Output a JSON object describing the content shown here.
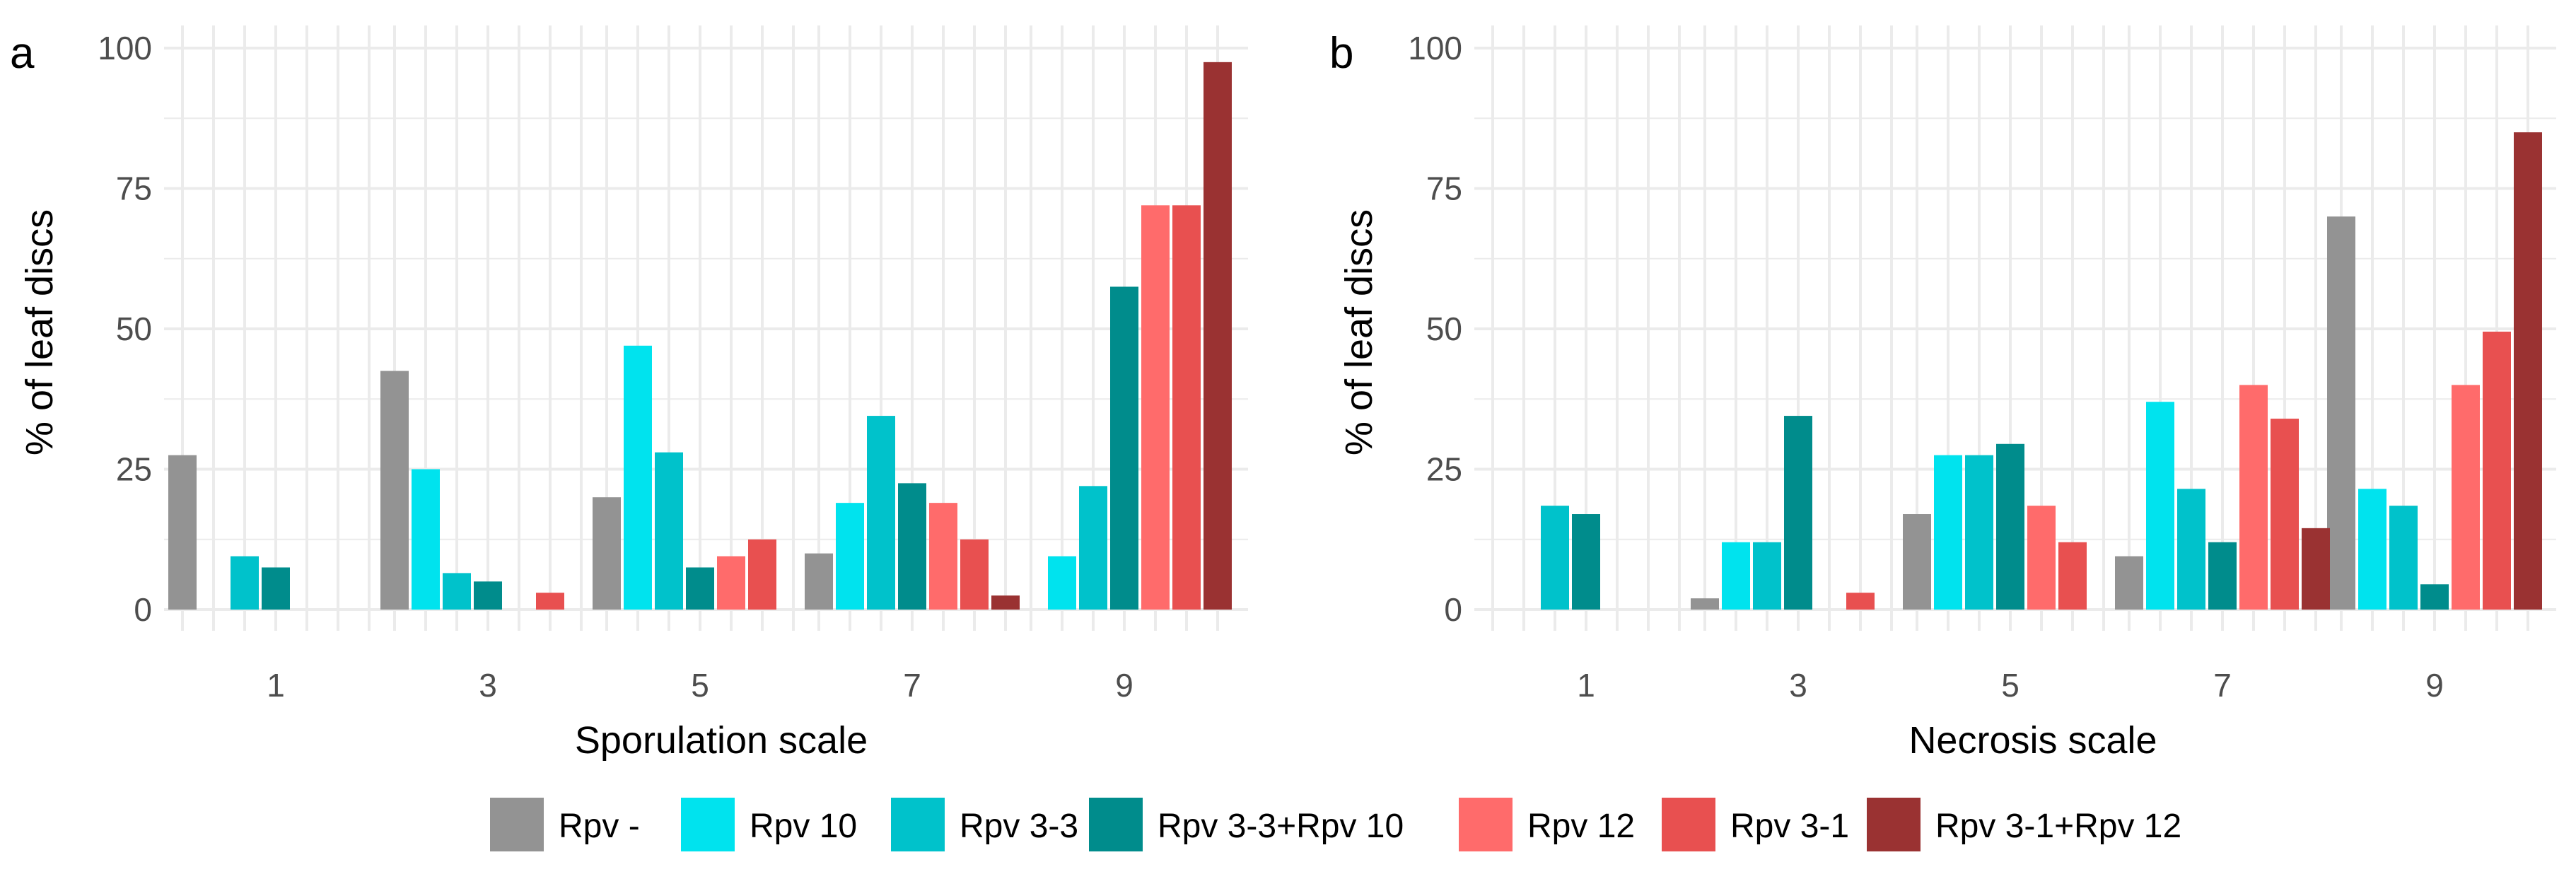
{
  "chart_data": [
    {
      "type": "bar",
      "panel_label": "a",
      "xlabel": "Sporulation scale",
      "ylabel": "% of leaf discs",
      "categories": [
        "1",
        "3",
        "5",
        "7",
        "9"
      ],
      "ylim": [
        0,
        100
      ],
      "yticks": [
        0,
        25,
        50,
        75,
        100
      ],
      "grid": true,
      "series": [
        {
          "name": "Rpv -",
          "values": [
            27.5,
            42.5,
            20,
            10,
            0
          ]
        },
        {
          "name": "Rpv 10",
          "values": [
            0,
            25,
            47,
            19,
            9.5
          ]
        },
        {
          "name": "Rpv 3-3",
          "values": [
            9.5,
            6.5,
            28,
            34.5,
            22
          ]
        },
        {
          "name": "Rpv 3-3+Rpv 10",
          "values": [
            7.5,
            5,
            7.5,
            22.5,
            57.5
          ]
        },
        {
          "name": "Rpv 12",
          "values": [
            0,
            0,
            9.5,
            19,
            72
          ]
        },
        {
          "name": "Rpv 3-1",
          "values": [
            0,
            3,
            12.5,
            12.5,
            72
          ]
        },
        {
          "name": "Rpv 3-1+Rpv 12",
          "values": [
            0,
            0,
            0,
            2.5,
            97.5
          ]
        }
      ]
    },
    {
      "type": "bar",
      "panel_label": "b",
      "xlabel": "Necrosis scale",
      "ylabel": "% of leaf discs",
      "categories": [
        "1",
        "3",
        "5",
        "7",
        "9"
      ],
      "ylim": [
        0,
        100
      ],
      "yticks": [
        0,
        25,
        50,
        75,
        100
      ],
      "grid": true,
      "series": [
        {
          "name": "Rpv -",
          "values": [
            0,
            2,
            17,
            9.5,
            70
          ]
        },
        {
          "name": "Rpv 10",
          "values": [
            0,
            12,
            27.5,
            37,
            21.5
          ]
        },
        {
          "name": "Rpv 3-3",
          "values": [
            18.5,
            12,
            27.5,
            21.5,
            18.5
          ]
        },
        {
          "name": "Rpv 3-3+Rpv 10",
          "values": [
            17,
            34.5,
            29.5,
            12,
            4.5
          ]
        },
        {
          "name": "Rpv 12",
          "values": [
            0,
            0,
            18.5,
            40,
            40
          ]
        },
        {
          "name": "Rpv 3-1",
          "values": [
            0,
            3,
            12,
            34,
            49.5
          ]
        },
        {
          "name": "Rpv 3-1+Rpv 12",
          "values": [
            0,
            0,
            0,
            14.5,
            85
          ]
        }
      ]
    }
  ],
  "legend": [
    {
      "label": "Rpv -",
      "color": "#939393"
    },
    {
      "label": "Rpv 10",
      "color": "#00E3EE"
    },
    {
      "label": "Rpv 3-3",
      "color": "#00C2CB"
    },
    {
      "label": "Rpv 3-3+Rpv 10",
      "color": "#008C8C"
    },
    {
      "label": "Rpv 12",
      "color": "#FF6B6B"
    },
    {
      "label": "Rpv 3-1",
      "color": "#E85050"
    },
    {
      "label": "Rpv 3-1+Rpv 12",
      "color": "#9A3232"
    }
  ],
  "colors": {
    "grid": "#ebebeb",
    "tick_text": "#4d4d4d",
    "text": "#000000"
  }
}
